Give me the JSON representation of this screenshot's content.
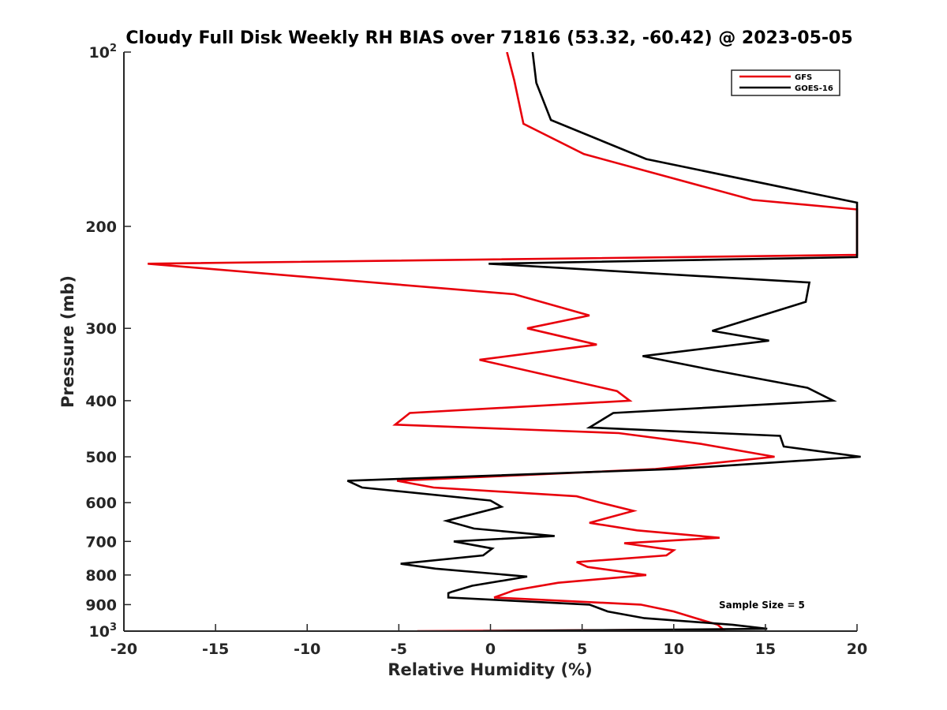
{
  "chart_data": {
    "type": "line",
    "title": "Cloudy Full Disk Weekly RH BIAS over 71816 (53.32, -60.42) @ 2023-05-05",
    "xlabel": "Relative Humidity (%)",
    "ylabel": "Pressure (mb)",
    "xlim": [
      -20,
      20
    ],
    "ylim": [
      100,
      1000
    ],
    "y_scale": "log",
    "y_reversed": true,
    "grid": false,
    "legend_position": "top-right",
    "x_ticks": [
      -20,
      -15,
      -10,
      -5,
      0,
      5,
      10,
      15,
      20
    ],
    "x_tick_labels": [
      "-20",
      "-15",
      "-10",
      "-5",
      "0",
      "5",
      "10",
      "15",
      "20"
    ],
    "y_ticks": [
      {
        "value": 100,
        "base": "10",
        "exp": "2"
      },
      {
        "value": 200,
        "base": "200",
        "exp": ""
      },
      {
        "value": 300,
        "base": "300",
        "exp": ""
      },
      {
        "value": 400,
        "base": "400",
        "exp": ""
      },
      {
        "value": 500,
        "base": "500",
        "exp": ""
      },
      {
        "value": 600,
        "base": "600",
        "exp": ""
      },
      {
        "value": 700,
        "base": "700",
        "exp": ""
      },
      {
        "value": 800,
        "base": "800",
        "exp": ""
      },
      {
        "value": 900,
        "base": "900",
        "exp": ""
      },
      {
        "value": 1000,
        "base": "10",
        "exp": "3"
      }
    ],
    "annotation": "Sample Size = 5",
    "series": [
      {
        "name": "GFS",
        "color": "#e8000b",
        "points": [
          [
            -4.0,
            1000
          ],
          [
            12.7,
            994
          ],
          [
            12.4,
            975
          ],
          [
            11.2,
            950
          ],
          [
            10.0,
            925
          ],
          [
            8.2,
            900
          ],
          [
            0.2,
            875
          ],
          [
            1.3,
            850
          ],
          [
            3.7,
            825
          ],
          [
            8.5,
            800
          ],
          [
            5.3,
            775
          ],
          [
            4.7,
            760
          ],
          [
            9.6,
            740
          ],
          [
            10.0,
            725
          ],
          [
            7.3,
            705
          ],
          [
            12.5,
            690
          ],
          [
            8.0,
            670
          ],
          [
            5.4,
            650
          ],
          [
            7.8,
            620
          ],
          [
            6.0,
            600
          ],
          [
            4.7,
            585
          ],
          [
            -3.1,
            565
          ],
          [
            -5.1,
            550
          ],
          [
            9.0,
            525
          ],
          [
            15.5,
            500
          ],
          [
            11.5,
            475
          ],
          [
            7.0,
            455
          ],
          [
            -5.2,
            440
          ],
          [
            -4.4,
            420
          ],
          [
            7.6,
            400
          ],
          [
            6.9,
            385
          ],
          [
            -0.6,
            340
          ],
          [
            5.8,
            320
          ],
          [
            2.0,
            300
          ],
          [
            5.4,
            285
          ],
          [
            1.3,
            262
          ],
          [
            -18.7,
            232
          ],
          [
            20.0,
            224
          ],
          [
            20.0,
            187
          ],
          [
            14.3,
            180
          ],
          [
            5.1,
            150
          ],
          [
            1.8,
            133
          ],
          [
            1.3,
            112
          ],
          [
            0.9,
            100
          ]
        ]
      },
      {
        "name": "GOES-16",
        "color": "#000000",
        "points": [
          [
            -0.4,
            1000
          ],
          [
            15.1,
            991
          ],
          [
            13.2,
            975
          ],
          [
            8.4,
            950
          ],
          [
            6.4,
            925
          ],
          [
            5.4,
            900
          ],
          [
            -2.3,
            875
          ],
          [
            -2.3,
            860
          ],
          [
            -2.1,
            855
          ],
          [
            -1.0,
            835
          ],
          [
            2.0,
            805
          ],
          [
            -3.0,
            780
          ],
          [
            -4.9,
            765
          ],
          [
            -0.4,
            740
          ],
          [
            0.1,
            720
          ],
          [
            -2.0,
            700
          ],
          [
            3.5,
            685
          ],
          [
            -0.9,
            665
          ],
          [
            -2.4,
            645
          ],
          [
            0.6,
            610
          ],
          [
            0.0,
            595
          ],
          [
            -7.0,
            565
          ],
          [
            -7.8,
            550
          ],
          [
            10.0,
            525
          ],
          [
            20.2,
            500
          ],
          [
            16.0,
            480
          ],
          [
            15.8,
            460
          ],
          [
            5.4,
            445
          ],
          [
            6.7,
            420
          ],
          [
            18.7,
            400
          ],
          [
            17.3,
            380
          ],
          [
            12.3,
            355
          ],
          [
            8.3,
            335
          ],
          [
            15.2,
            315
          ],
          [
            12.1,
            303
          ],
          [
            17.2,
            270
          ],
          [
            17.4,
            250
          ],
          [
            -0.1,
            232
          ],
          [
            20.0,
            226
          ],
          [
            20.0,
            182
          ],
          [
            8.5,
            153
          ],
          [
            3.3,
            131
          ],
          [
            2.5,
            113
          ],
          [
            2.3,
            100
          ]
        ]
      }
    ]
  }
}
